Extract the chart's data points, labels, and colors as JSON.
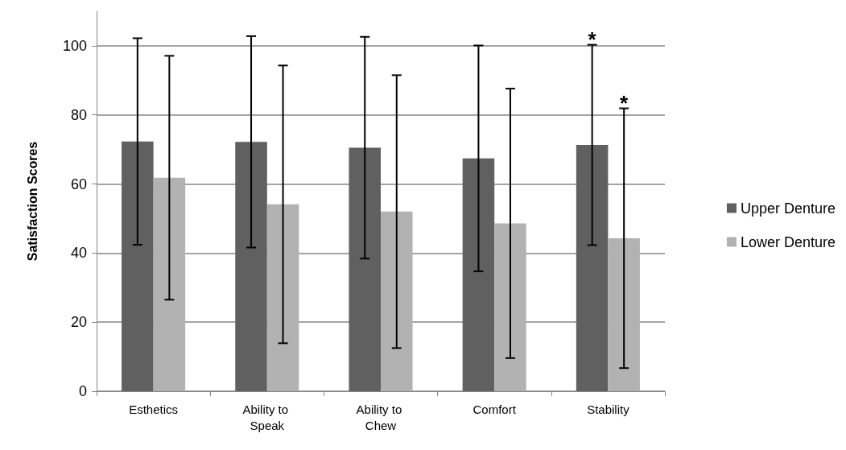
{
  "chart_data": {
    "type": "bar",
    "ylabel": "Satisfaction Scores",
    "categories": [
      "Esthetics",
      "Ability to Speak",
      "Ability to Chew",
      "Comfort",
      "Stability"
    ],
    "series": [
      {
        "name": "Upper Denture",
        "color": "#606060",
        "values": [
          72.3,
          72.2,
          70.5,
          67.4,
          71.3
        ],
        "errors": [
          29.9,
          30.6,
          32.1,
          32.7,
          29
        ]
      },
      {
        "name": "Lower Denture",
        "color": "#b2b2b2",
        "values": [
          61.8,
          54.1,
          52.0,
          48.6,
          44.3
        ],
        "errors": [
          35.3,
          40.2,
          39.5,
          39,
          37.6
        ]
      }
    ],
    "ylim": [
      0,
      110
    ],
    "yticks": [
      0,
      20,
      40,
      60,
      80,
      100
    ],
    "grid": "y",
    "legend": "right",
    "annotations": [
      "*",
      "*"
    ]
  }
}
